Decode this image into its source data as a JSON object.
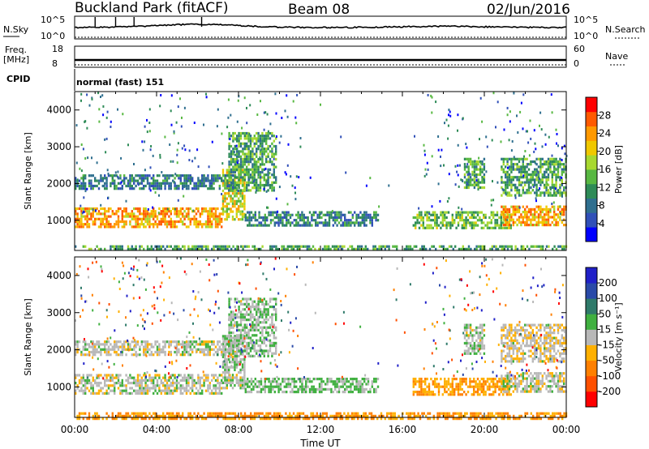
{
  "header": {
    "station_title": "Buckland Park (fitACF)",
    "beam": "Beam 08",
    "date": "02/Jun/2016"
  },
  "top_panels": {
    "nsky_label": "N.Sky",
    "nsky_ticks": [
      "10^5",
      "10^0"
    ],
    "nsearch_label": "N.Search",
    "nsearch_ticks": [
      "10^5",
      "10^0"
    ],
    "freq_label_1": "Freq.",
    "freq_label_2": "[MHz]",
    "freq_ticks": [
      "18",
      "8"
    ],
    "nave_label": "Nave",
    "nave_ticks": [
      "60",
      "0"
    ],
    "cpid_label": "CPID",
    "cpid_text": "normal (fast) 151"
  },
  "time_axis": {
    "label": "Time UT",
    "ticks": [
      "00:00",
      "04:00",
      "08:00",
      "12:00",
      "16:00",
      "20:00",
      "00:00"
    ]
  },
  "power_panel": {
    "ylabel": "Slant Range [km]",
    "yticks": [
      "4000",
      "3000",
      "2000",
      "1000"
    ],
    "colorbar_label": "Power [dB]",
    "colorbar_ticks": [
      "28",
      "24",
      "20",
      "16",
      "12",
      "8",
      "4"
    ],
    "colors": [
      "#0000ff",
      "#3050b8",
      "#2f6f8f",
      "#2e8b57",
      "#58b842",
      "#a8d830",
      "#f0c800",
      "#ff9900",
      "#ff5a00",
      "#ff0000"
    ]
  },
  "velocity_panel": {
    "ylabel": "Slant Range [km]",
    "yticks": [
      "4000",
      "3000",
      "2000",
      "1000"
    ],
    "colorbar_label": "Velocity [m s⁻¹]",
    "colorbar_ticks": [
      "200",
      "100",
      "50",
      "15",
      "-15",
      "-50",
      "-100",
      "-200"
    ],
    "colors": [
      "#2020c8",
      "#2a4aa8",
      "#2f7a6a",
      "#40b040",
      "#b8b8b8",
      "#ffb000",
      "#ff8000",
      "#ff5000",
      "#ff0000"
    ]
  },
  "chart_data": {
    "type": "heatmap",
    "x_range_hours": [
      0,
      24
    ],
    "y_range_km": [
      180,
      4500
    ],
    "time_tick_hours": [
      0,
      4,
      8,
      12,
      16,
      20,
      24
    ],
    "range_tick_km": [
      4000,
      3000,
      2000,
      1000
    ],
    "power_scale_db": [
      0,
      30
    ],
    "velocity_scale_ms": [
      -200,
      200
    ],
    "echo_regions": [
      {
        "t0": 0.0,
        "t1": 7.2,
        "r0": 850,
        "r1": 1350,
        "power": 22,
        "velocity": 0
      },
      {
        "t0": 7.2,
        "t1": 8.3,
        "r0": 1000,
        "r1": 2400,
        "power": 18,
        "velocity": 10
      },
      {
        "t0": 0.0,
        "t1": 7.8,
        "r0": 1850,
        "r1": 2250,
        "power": 8,
        "velocity": 0
      },
      {
        "t0": 7.5,
        "t1": 9.8,
        "r0": 1800,
        "r1": 3400,
        "power": 12,
        "velocity": 20
      },
      {
        "t0": 8.3,
        "t1": 14.8,
        "r0": 850,
        "r1": 1250,
        "power": 9,
        "velocity": 30
      },
      {
        "t0": 16.5,
        "t1": 21.3,
        "r0": 800,
        "r1": 1250,
        "power": 14,
        "velocity": -60
      },
      {
        "t0": 19.0,
        "t1": 20.0,
        "r0": 1900,
        "r1": 2700,
        "power": 13,
        "velocity": 10
      },
      {
        "t0": 20.8,
        "t1": 24.0,
        "r0": 900,
        "r1": 1400,
        "power": 22,
        "velocity": 0
      },
      {
        "t0": 20.8,
        "t1": 24.0,
        "r0": 1700,
        "r1": 2700,
        "power": 12,
        "velocity": -10
      },
      {
        "t0": 0.0,
        "t1": 24.0,
        "r0": 180,
        "r1": 320,
        "power": 12,
        "velocity": -70
      }
    ]
  }
}
